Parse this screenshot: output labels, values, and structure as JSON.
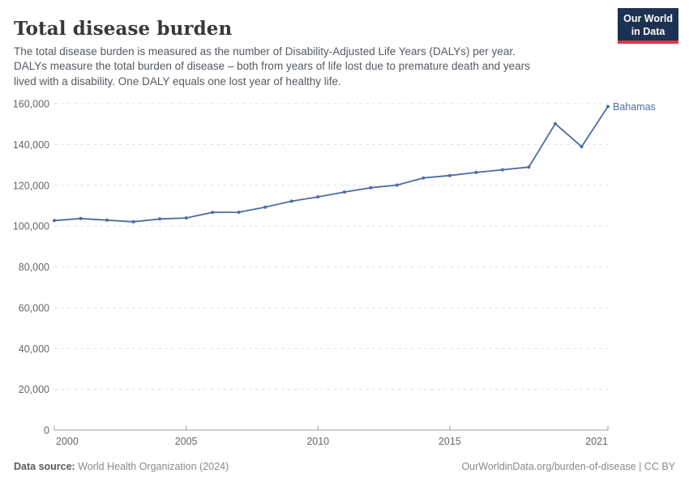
{
  "header": {
    "title": "Total disease burden",
    "subtitle_lines": [
      "The total disease burden is measured as the number of Disability-Adjusted Life Years (DALYs) per year.",
      "DALYs measure the total burden of disease – both from years of life lost due to premature death and years",
      "lived with a disability. One DALY equals one lost year of healthy life."
    ],
    "logo": {
      "line1": "Our World",
      "line2": "in Data"
    }
  },
  "chart_data": {
    "type": "line",
    "title": "Total disease burden",
    "entity": "Bahamas",
    "x": [
      2000,
      2001,
      2002,
      2003,
      2004,
      2005,
      2006,
      2007,
      2008,
      2009,
      2010,
      2011,
      2012,
      2013,
      2014,
      2015,
      2016,
      2017,
      2018,
      2019,
      2020,
      2021
    ],
    "values": [
      102700,
      103700,
      102900,
      102100,
      103500,
      104000,
      106700,
      106800,
      109300,
      112200,
      114300,
      116700,
      118800,
      120100,
      123600,
      124800,
      126300,
      127600,
      128900,
      150200,
      138900,
      158600
    ],
    "ylabel": "",
    "xlabel": "",
    "ylim": [
      0,
      160000
    ],
    "yticks": [
      0,
      20000,
      40000,
      60000,
      80000,
      100000,
      120000,
      140000,
      160000
    ],
    "xticks": [
      2000,
      2005,
      2010,
      2015,
      2021
    ],
    "grid": "horizontal-dashed",
    "legend_position": "end-of-line-label",
    "line_color": "#4e6ba5",
    "gridline_color": "#e0e0e0",
    "axis_color": "#a0a0a0",
    "tick_label_color": "#666666"
  },
  "footer": {
    "datasource_label": "Data source:",
    "datasource_value": " World Health Organization (2024)",
    "link_text": "OurWorldinData.org/burden-of-disease | CC BY"
  }
}
